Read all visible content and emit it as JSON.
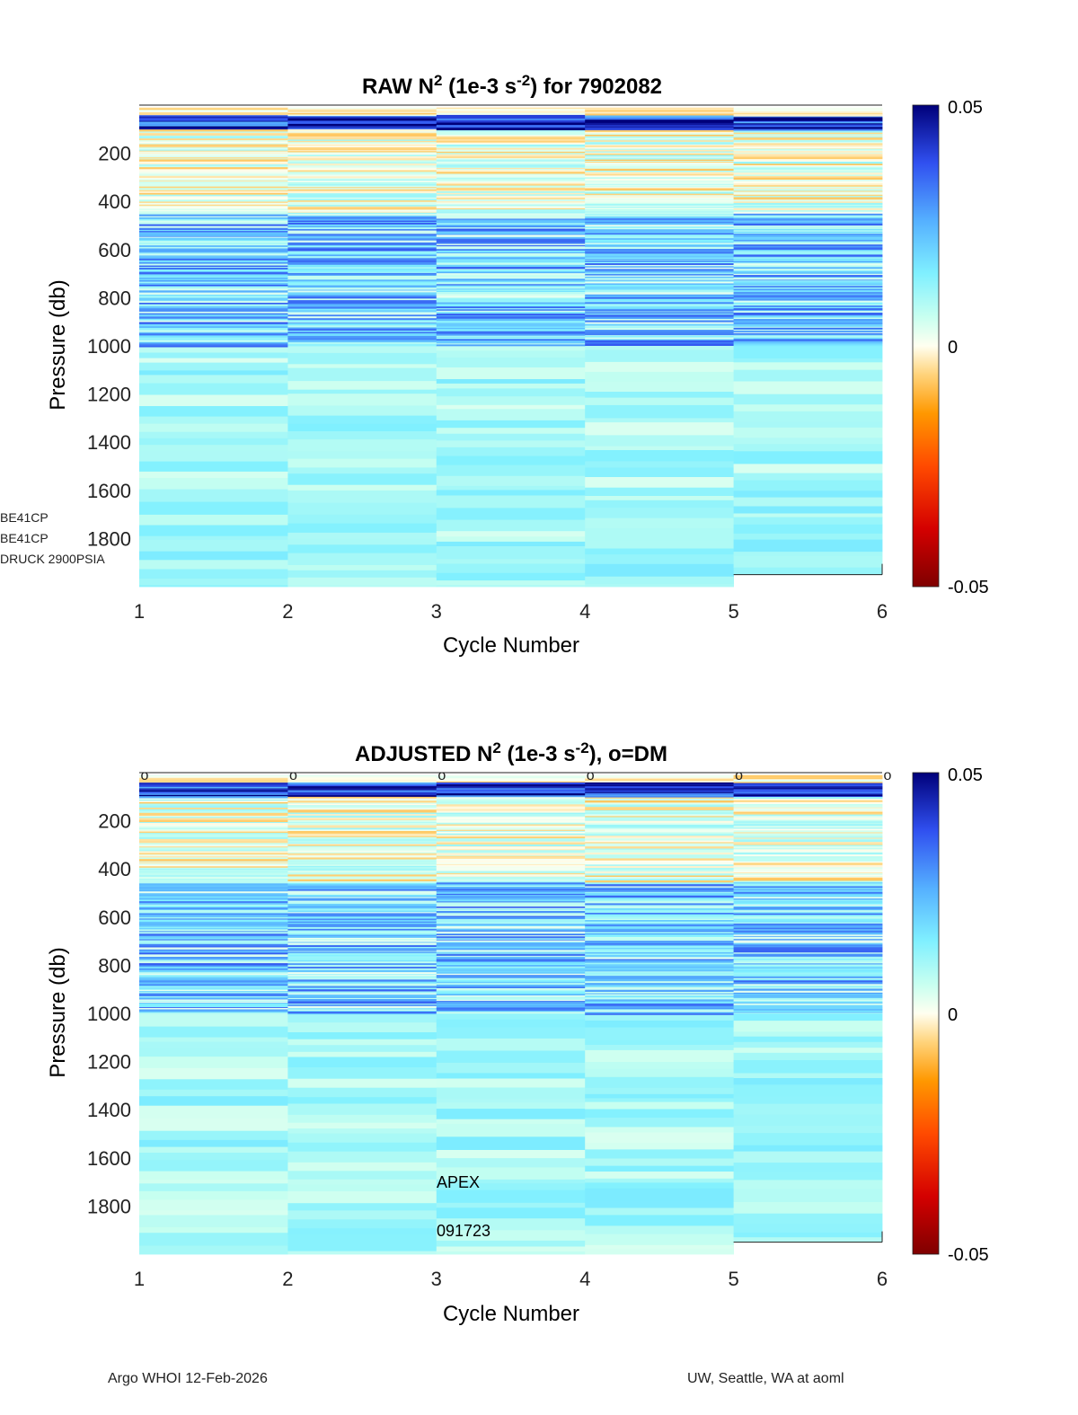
{
  "chart_data": [
    {
      "type": "heatmap",
      "title_prefix": "RAW N",
      "title_sup": "2",
      "title_mid": " (1e-3 s",
      "title_sup2": "-2",
      "title_suffix": ") for 7902082",
      "xlabel": "Cycle Number",
      "ylabel": "Pressure (db)",
      "x_ticks": [
        "1",
        "2",
        "3",
        "4",
        "5",
        "6"
      ],
      "y_ticks": [
        "200",
        "400",
        "600",
        "800",
        "1000",
        "1200",
        "1400",
        "1600",
        "1800"
      ],
      "xlim": [
        1,
        6
      ],
      "ylim": [
        0,
        2000
      ],
      "colorbar": {
        "min_label": "-0.05",
        "zero_label": "0",
        "max_label": "0.05",
        "range": [
          -0.05,
          0.05
        ]
      },
      "cycles": [
        1,
        2,
        3,
        4,
        5
      ],
      "dm_markers": false,
      "seed": 11
    },
    {
      "type": "heatmap",
      "title_prefix": "ADJUSTED N",
      "title_sup": "2",
      "title_mid": " (1e-3 s",
      "title_sup2": "-2",
      "title_suffix": "), o=DM",
      "xlabel": "Cycle Number",
      "ylabel": "Pressure (db)",
      "x_ticks": [
        "1",
        "2",
        "3",
        "4",
        "5",
        "6"
      ],
      "y_ticks": [
        "200",
        "400",
        "600",
        "800",
        "1000",
        "1200",
        "1400",
        "1600",
        "1800"
      ],
      "xlim": [
        1,
        6
      ],
      "ylim": [
        0,
        2000
      ],
      "colorbar": {
        "min_label": "-0.05",
        "zero_label": "0",
        "max_label": "0.05",
        "range": [
          -0.05,
          0.05
        ]
      },
      "cycles": [
        1,
        2,
        3,
        4,
        5
      ],
      "dm_markers": true,
      "dm_symbol": "o",
      "annotations": [
        "APEX",
        "091723"
      ],
      "seed": 29
    }
  ],
  "side_labels": [
    "BE41CP",
    "BE41CP",
    "DRUCK 2900PSIA"
  ],
  "footer": {
    "left": "Argo WHOI 12-Feb-2026",
    "right": "UW, Seattle, WA at aoml"
  }
}
